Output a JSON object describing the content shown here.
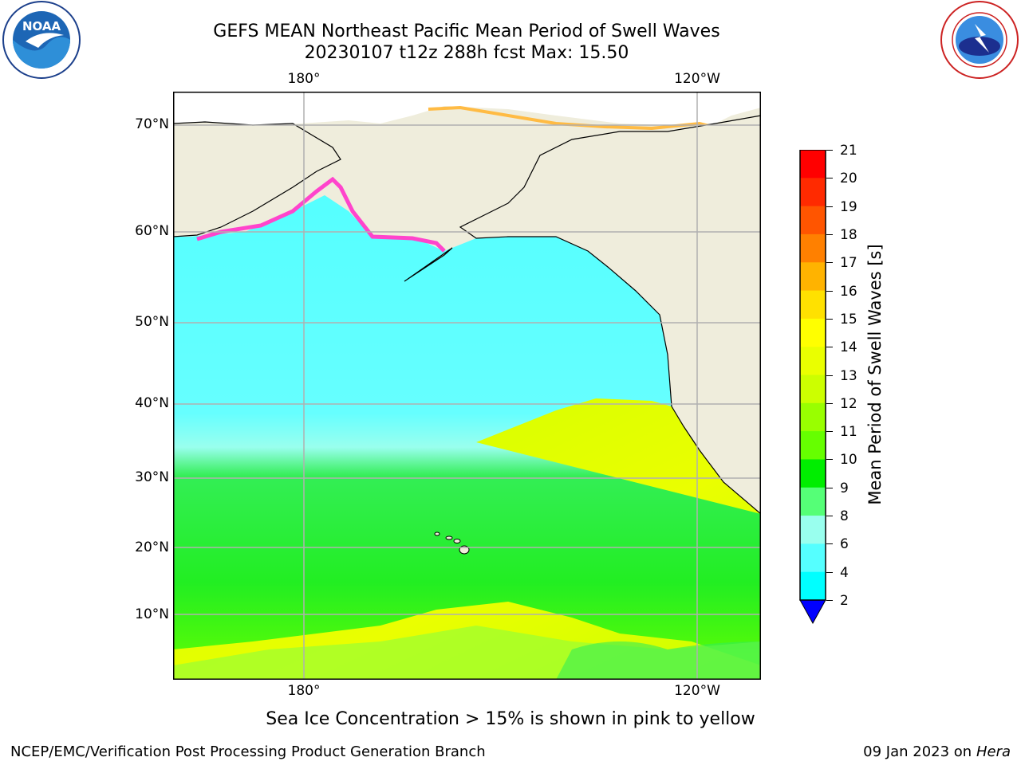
{
  "title": {
    "line1": "GEFS MEAN Northeast Pacific Mean Period of Swell Waves",
    "line2": "20230107 t12z 288h fcst   Max: 15.50"
  },
  "axes": {
    "lon_ticks": [
      "180°",
      "120°W"
    ],
    "lat_ticks": [
      "70°N",
      "60°N",
      "50°N",
      "40°N",
      "30°N",
      "20°N",
      "10°N"
    ]
  },
  "colorbar": {
    "label": "Mean Period of Swell Waves [s]",
    "ticks": [
      "21",
      "20",
      "19",
      "18",
      "17",
      "16",
      "15",
      "14",
      "13",
      "12",
      "11",
      "10",
      "9",
      "8",
      "6",
      "4",
      "2"
    ],
    "colors": [
      "#ff0000",
      "#ff2a00",
      "#ff5500",
      "#ff8000",
      "#ffb300",
      "#ffe100",
      "#ffff00",
      "#eaff00",
      "#ccff00",
      "#99ff00",
      "#66ff00",
      "#00ee00",
      "#55ff77",
      "#99ffee",
      "#55ffff",
      "#00ffff",
      "#0099ff",
      "#0000ff"
    ],
    "units": "s"
  },
  "legend_note": "Sea Ice Concentration > 15% is shown in pink to yellow",
  "footer": {
    "left": "NCEP/EMC/Verification Post Processing Product Generation Branch",
    "date": "09 Jan 2023 on ",
    "machine": "Hera"
  },
  "logos": {
    "left": "NOAA",
    "right": "NATIONAL WEATHER SERVICE"
  }
}
